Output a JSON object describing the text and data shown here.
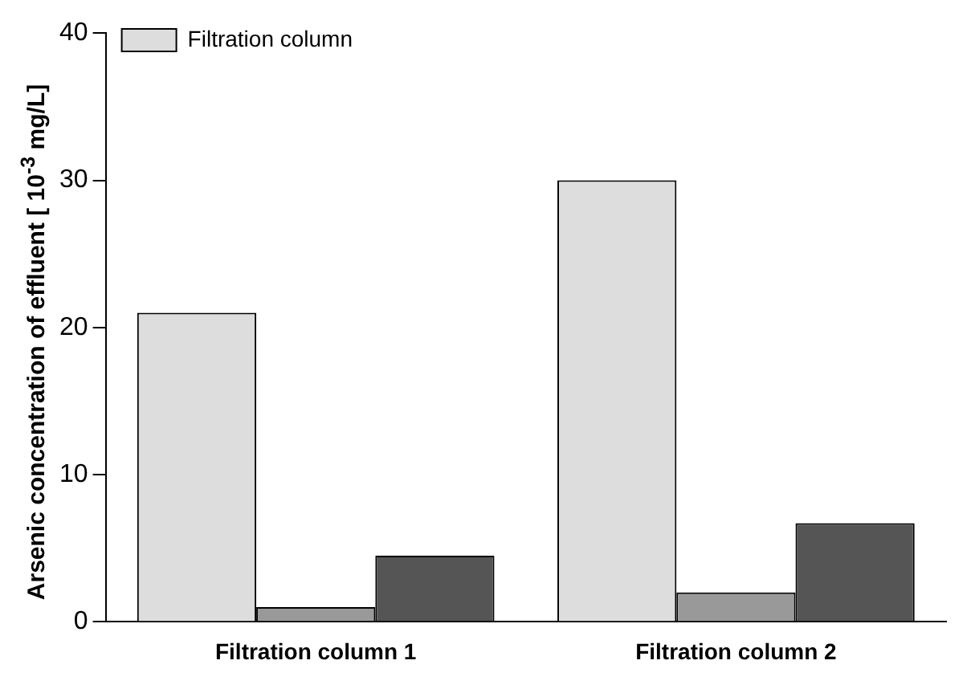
{
  "chart_data": {
    "type": "bar",
    "ylabel": "Arsenic concentration of effluent [ 10$^{-3}$ mg/L]",
    "categories": [
      "Filtration column 1",
      "Filtration column 2"
    ],
    "series": [
      {
        "name": "Filtration column",
        "color": "#dddddd",
        "values": [
          21,
          30
        ]
      },
      {
        "color": "#999999",
        "values": [
          1,
          2
        ]
      },
      {
        "color": "#555555",
        "values": [
          4.5,
          6.7
        ]
      }
    ],
    "ylim": [
      0,
      40
    ],
    "yticks": [
      0,
      10,
      20,
      30,
      40
    ],
    "grid": false,
    "legend": "top left"
  }
}
